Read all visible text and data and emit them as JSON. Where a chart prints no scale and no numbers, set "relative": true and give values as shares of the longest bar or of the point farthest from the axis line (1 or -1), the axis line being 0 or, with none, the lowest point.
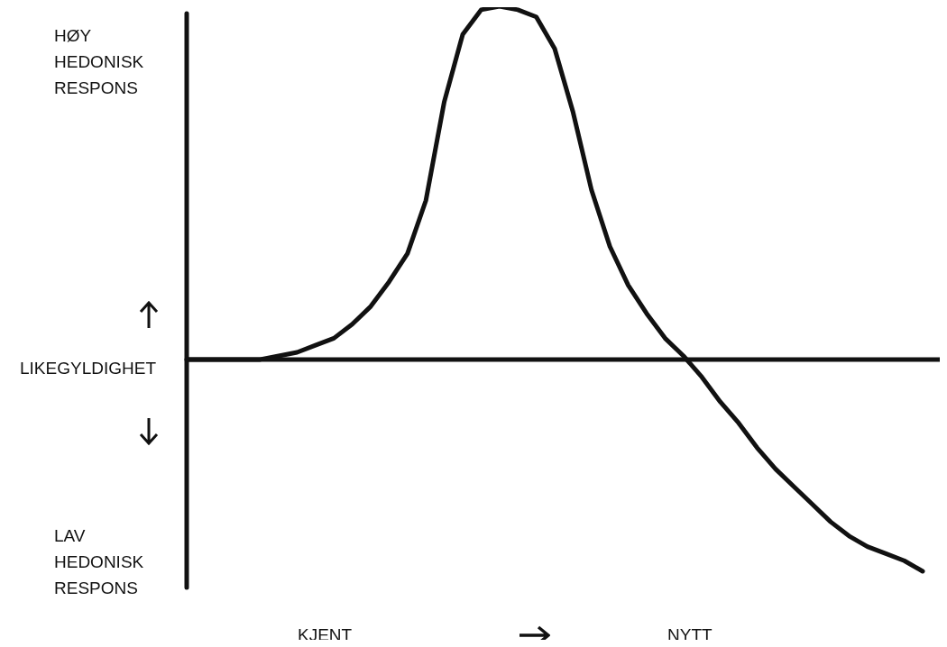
{
  "chart_data": {
    "type": "line",
    "relative": true,
    "color": "#111111",
    "categories": [
      null,
      null,
      null,
      null,
      null,
      null,
      null,
      null,
      null,
      null,
      null,
      null,
      null,
      null,
      null,
      null,
      null,
      null,
      null,
      null,
      null,
      null,
      null,
      null,
      null,
      null,
      null,
      null,
      null,
      null,
      null,
      null,
      null,
      null,
      null,
      null,
      null,
      null,
      null,
      null,
      null
    ],
    "values": [
      0,
      0,
      0,
      0,
      0,
      0.01,
      0.02,
      0.04,
      0.06,
      0.1,
      0.15,
      0.22,
      0.3,
      0.45,
      0.73,
      0.92,
      0.99,
      1,
      0.99,
      0.97,
      0.88,
      0.7,
      0.48,
      0.32,
      0.21,
      0.13,
      0.06,
      0.01,
      -0.05,
      -0.12,
      -0.18,
      -0.25,
      -0.31,
      -0.36,
      -0.41,
      -0.46,
      -0.5,
      -0.53,
      -0.55,
      -0.57,
      -0.6
    ],
    "annotations": [
      "HØY HEDONISK RESPONS",
      "LIKEGYLDIGHET",
      "LAV HEDONISK RESPONS",
      "KJENT",
      "NYTT"
    ]
  }
}
